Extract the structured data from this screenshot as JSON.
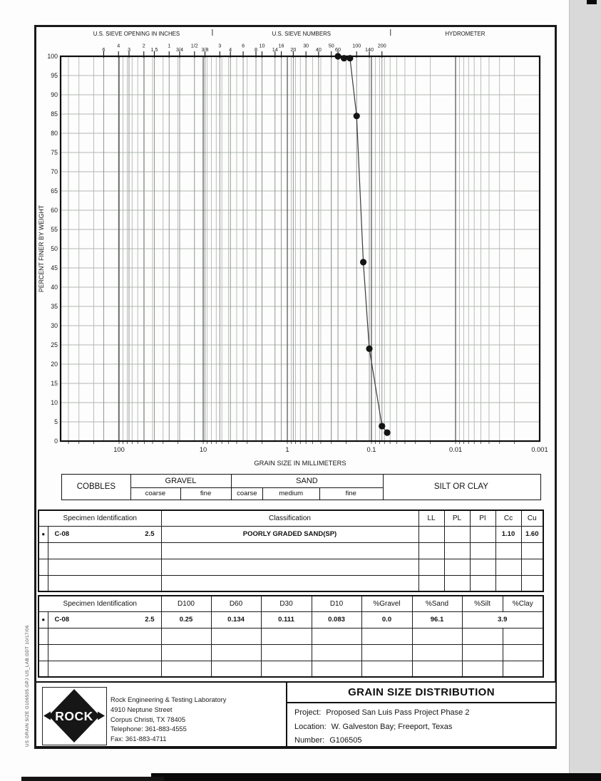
{
  "sheet": {
    "bg": "#ffffff",
    "border_color": "#1a1a1a",
    "grid_minor_color": "#b2b8b2",
    "grid_sieve_color": "#868c86",
    "grid_decade_color": "#4a4e4a",
    "curve_color": "#3a3a3a",
    "marker_color": "#141414"
  },
  "top_axis": {
    "sections": [
      "U.S. SIEVE OPENING IN INCHES",
      "U.S. SIEVE NUMBERS",
      "HYDROMETER"
    ],
    "sieves": [
      {
        "label": "6",
        "mm": 152.4
      },
      {
        "label": "4",
        "mm": 101.6
      },
      {
        "label": "3",
        "mm": 76.2
      },
      {
        "label": "2",
        "mm": 50.8
      },
      {
        "label": "1.5",
        "mm": 38.1
      },
      {
        "label": "1",
        "mm": 25.4
      },
      {
        "label": "3/4",
        "mm": 19.05
      },
      {
        "label": "1/2",
        "mm": 12.7
      },
      {
        "label": "3/8",
        "mm": 9.525
      },
      {
        "label": "3",
        "mm": 6.35
      },
      {
        "label": "4",
        "mm": 4.75
      },
      {
        "label": "6",
        "mm": 3.35
      },
      {
        "label": "8",
        "mm": 2.36
      },
      {
        "label": "10",
        "mm": 2.0
      },
      {
        "label": "14",
        "mm": 1.4
      },
      {
        "label": "16",
        "mm": 1.18
      },
      {
        "label": "20",
        "mm": 0.85
      },
      {
        "label": "30",
        "mm": 0.6
      },
      {
        "label": "40",
        "mm": 0.425
      },
      {
        "label": "50",
        "mm": 0.3
      },
      {
        "label": "60",
        "mm": 0.25
      },
      {
        "label": "100",
        "mm": 0.15
      },
      {
        "label": "140",
        "mm": 0.106
      },
      {
        "label": "200",
        "mm": 0.075
      }
    ]
  },
  "chart_data": {
    "type": "line",
    "x_scale": "log",
    "xlabel": "GRAIN SIZE IN MILLIMETERS",
    "ylabel": "PERCENT FINER BY WEIGHT",
    "x_decade_labels": [
      "100",
      "10",
      "1",
      "0.1",
      "0.01",
      "0.001"
    ],
    "xlim_mm": [
      495,
      0.001
    ],
    "ylim": [
      0,
      100
    ],
    "y_tick_step": 5,
    "grid": true,
    "series": [
      {
        "name": "C-08 @ 2.5",
        "marker": "●",
        "points": [
          {
            "mm": 0.25,
            "pct": 100.0
          },
          {
            "mm": 0.212,
            "pct": 99.5
          },
          {
            "mm": 0.18,
            "pct": 99.5
          },
          {
            "mm": 0.15,
            "pct": 84.5
          },
          {
            "mm": 0.125,
            "pct": 46.5
          },
          {
            "mm": 0.106,
            "pct": 24.0
          },
          {
            "mm": 0.075,
            "pct": 3.9
          },
          {
            "mm": 0.065,
            "pct": 2.2
          }
        ]
      }
    ]
  },
  "fraction_band": {
    "boundaries_mm": {
      "cobbles_gravel": 75,
      "coarse_fine_gravel": 19.05,
      "gravel_sand": 4.75,
      "coarse_medium_sand": 2.0,
      "medium_fine_sand": 0.425,
      "sand_fines": 0.075
    },
    "cobbles": "COBBLES",
    "gravel": "GRAVEL",
    "gravel_subs": [
      "coarse",
      "fine"
    ],
    "sand": "SAND",
    "sand_subs": [
      "coarse",
      "medium",
      "fine"
    ],
    "fines": "SILT OR CLAY"
  },
  "spec_table": {
    "specimen_header": "Specimen Identification",
    "classification_header": "Classification",
    "cols": [
      "LL",
      "PL",
      "PI",
      "Cc",
      "Cu"
    ],
    "rows": [
      {
        "marker": "●",
        "id": "C-08",
        "depth": "2.5",
        "classification": "POORLY GRADED SAND(SP)",
        "values": [
          "",
          "",
          "",
          "1.10",
          "1.60"
        ]
      }
    ],
    "blank_rows": 3
  },
  "grad_table": {
    "specimen_header": "Specimen Identification",
    "cols": [
      "D100",
      "D60",
      "D30",
      "D10",
      "%Gravel",
      "%Sand",
      "%Silt",
      "%Clay"
    ],
    "rows": [
      {
        "marker": "●",
        "id": "C-08",
        "depth": "2.5",
        "values": [
          "0.25",
          "0.134",
          "0.111",
          "0.083",
          "0.0",
          "96.1"
        ],
        "silt_clay": "3.9"
      }
    ],
    "blank_rows": 3
  },
  "footer": {
    "logo_text": "ROCK",
    "company_lines": [
      "Rock Engineering & Testing Laboratory",
      "4910 Neptune Street",
      "Corpus Christi, TX 78405",
      "Telephone:  361-883-4555",
      "Fax:  361-883-4711"
    ],
    "title": "GRAIN SIZE DISTRIBUTION",
    "project_label": "Project:",
    "project_value": "Proposed San Luis Pass Project Phase 2",
    "location_label": "Location:",
    "location_value": "W. Galveston Bay; Freeport, Texas",
    "number_label": "Number:",
    "number_value": "G106505"
  },
  "sidebar_text": "US  GRAIN  SIZE   G106505.GPJ  US_LAB.GDT  10/17/06"
}
